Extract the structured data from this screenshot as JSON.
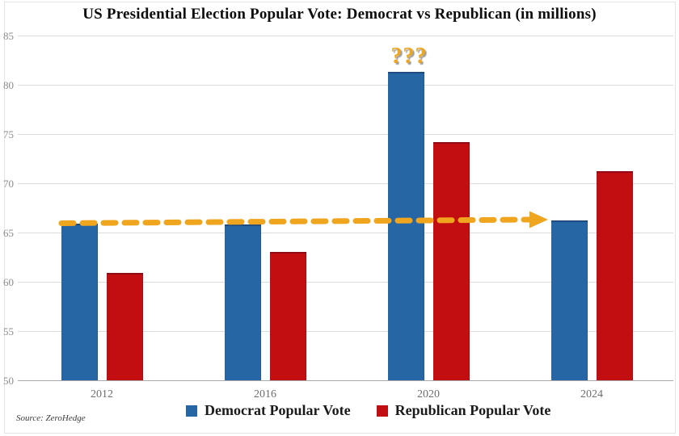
{
  "title": "US Presidential Election Popular Vote: Democrat vs Republican (in millions)",
  "source": "Source: ZeroHedge",
  "annotation": "???",
  "colors": {
    "democrat": "#2766A4",
    "republican": "#C20E10",
    "gold": "#F0A51F",
    "grid": "#DBDBDB",
    "axis_line": "#A9A9A9",
    "tick_text": "#8C8C8C"
  },
  "legend": [
    {
      "label": "Democrat Popular Vote",
      "color": "#2766A4"
    },
    {
      "label": "Republican Popular Vote",
      "color": "#C20E10"
    }
  ],
  "chart_data": {
    "type": "bar",
    "title": "US Presidential Election Popular Vote: Democrat vs Republican (in millions)",
    "categories": [
      "2012",
      "2016",
      "2020",
      "2024"
    ],
    "series": [
      {
        "name": "Democrat Popular Vote",
        "color": "#2766A4",
        "values": [
          65.9,
          65.8,
          81.3,
          66.2
        ]
      },
      {
        "name": "Republican Popular Vote",
        "color": "#C20E10",
        "values": [
          60.9,
          63.0,
          74.2,
          71.2
        ]
      }
    ],
    "xlabel": "",
    "ylabel": "",
    "ylim": [
      50,
      85
    ],
    "yticks": [
      85,
      80,
      75,
      70,
      65,
      60,
      55,
      50
    ],
    "grid": true,
    "legend_position": "bottom",
    "annotations": [
      {
        "text": "???",
        "color": "#F0A51F",
        "target": "2020 Democrat bar (above top)"
      },
      {
        "type": "dashed-arrow",
        "color": "#F0A51F",
        "from_value": 65.9,
        "to_value": 66.2,
        "note": "horizontal dashed gold arrow from 2012 Democrat bar top to 2024 Democrat bar top"
      }
    ]
  }
}
